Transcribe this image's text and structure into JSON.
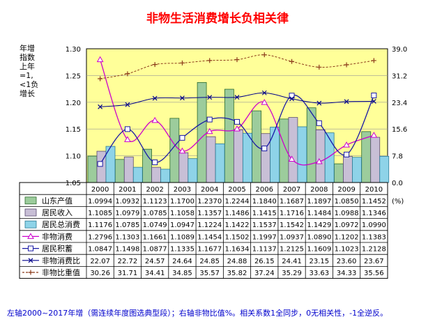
{
  "chart_data": {
    "type": "bar+line",
    "title": "非物生活消费增长负相关律",
    "ylabel_lines": [
      "年增",
      "指数",
      "上年",
      "=1,",
      "<1负",
      "增长"
    ],
    "categories": [
      "2000",
      "2001",
      "2002",
      "2003",
      "2004",
      "2005",
      "2006",
      "2007",
      "2008",
      "2009",
      "2010"
    ],
    "left_axis": {
      "min": 1.05,
      "max": 1.3,
      "ticks": [
        "1.30",
        "1.25",
        "1.20",
        "1.15",
        "1.10",
        "1.05"
      ]
    },
    "right_axis": {
      "min": 0.0,
      "max": 39.0,
      "ticks": [
        "39.0",
        "31.2",
        "23.4",
        "15.6",
        "7.8",
        "0.0"
      ],
      "unit": "(%)"
    },
    "bar_series": [
      {
        "name": "山东产值",
        "color": "#9ccc9c",
        "edge": "#2d6b2d",
        "values": [
          1.0994,
          1.0932,
          1.1123,
          1.17,
          1.237,
          1.2244,
          1.184,
          1.1687,
          1.1897,
          1.085,
          1.1452
        ],
        "labels": [
          "1.0994",
          "1.0932",
          "1.1123",
          "1.1700",
          "1.2370",
          "1.2244",
          "1.1840",
          "1.1687",
          "1.1897",
          "1.0850",
          "1.1452"
        ]
      },
      {
        "name": "居民收入",
        "color": "#c8bfd6",
        "edge": "#5a4a70",
        "values": [
          1.1085,
          1.0979,
          1.0785,
          1.1058,
          1.1357,
          1.1486,
          1.1415,
          1.1716,
          1.1484,
          1.0988,
          1.1346
        ],
        "labels": [
          "1.1085",
          "1.0979",
          "1.0785",
          "1.1058",
          "1.1357",
          "1.1486",
          "1.1415",
          "1.1716",
          "1.1484",
          "1.0988",
          "1.1346"
        ]
      },
      {
        "name": "居民总消费",
        "color": "#8ed3e8",
        "edge": "#2a7a94",
        "values": [
          1.1176,
          1.0785,
          1.0749,
          1.0947,
          1.1224,
          1.1422,
          1.1537,
          1.1542,
          1.1429,
          1.0972,
          1.099
        ],
        "labels": [
          "1.1176",
          "1.0785",
          "1.0749",
          "1.0947",
          "1.1224",
          "1.1422",
          "1.1537",
          "1.1542",
          "1.1429",
          "1.0972",
          "1.0990"
        ]
      }
    ],
    "line_series": [
      {
        "name": "非物消费",
        "axis": "left",
        "color": "#cc00cc",
        "marker": "triangle",
        "values": [
          1.2796,
          1.1303,
          1.1661,
          1.1089,
          1.1454,
          1.1502,
          1.1997,
          1.0937,
          1.089,
          1.1202,
          1.1383
        ],
        "labels": [
          "1.2796",
          "1.1303",
          "1.1661",
          "1.1089",
          "1.1454",
          "1.1502",
          "1.1997",
          "1.0937",
          "1.0890",
          "1.1202",
          "1.1383"
        ]
      },
      {
        "name": "居民积蓄",
        "axis": "left",
        "color": "#1a1aa6",
        "marker": "square",
        "values": [
          1.0847,
          1.1498,
          1.0877,
          1.1335,
          1.1677,
          1.1634,
          1.1137,
          1.2125,
          1.1609,
          1.1023,
          1.2128
        ],
        "labels": [
          "1.0847",
          "1.1498",
          "1.0877",
          "1.1335",
          "1.1677",
          "1.1634",
          "1.1137",
          "1.2125",
          "1.1609",
          "1.1023",
          "1.2128"
        ]
      },
      {
        "name": "非物消费比",
        "axis": "right",
        "color": "#00008b",
        "marker": "x",
        "values": [
          22.07,
          22.72,
          24.57,
          24.64,
          24.85,
          24.88,
          26.15,
          24.41,
          23.15,
          23.6,
          23.67
        ],
        "labels": [
          "22.07",
          "22.72",
          "24.57",
          "24.64",
          "24.85",
          "24.88",
          "26.15",
          "24.41",
          "23.15",
          "23.60",
          "23.67"
        ]
      },
      {
        "name": "非物比重值",
        "axis": "right",
        "color": "#8b3a1a",
        "marker": "plus",
        "values": [
          30.26,
          31.71,
          34.41,
          34.85,
          35.57,
          35.82,
          37.24,
          35.29,
          33.63,
          34.33,
          35.56
        ],
        "labels": [
          "30.26",
          "31.71",
          "34.41",
          "34.85",
          "35.57",
          "35.82",
          "37.24",
          "35.29",
          "33.63",
          "34.33",
          "35.56"
        ]
      }
    ],
    "plot_background": "#ffff99",
    "grid": true,
    "footnote": "左轴2000~2017年增（需连续年度图选典型段）；右轴非物比值%。相关系数1全同步，0无相关性，-1全逆反。"
  }
}
